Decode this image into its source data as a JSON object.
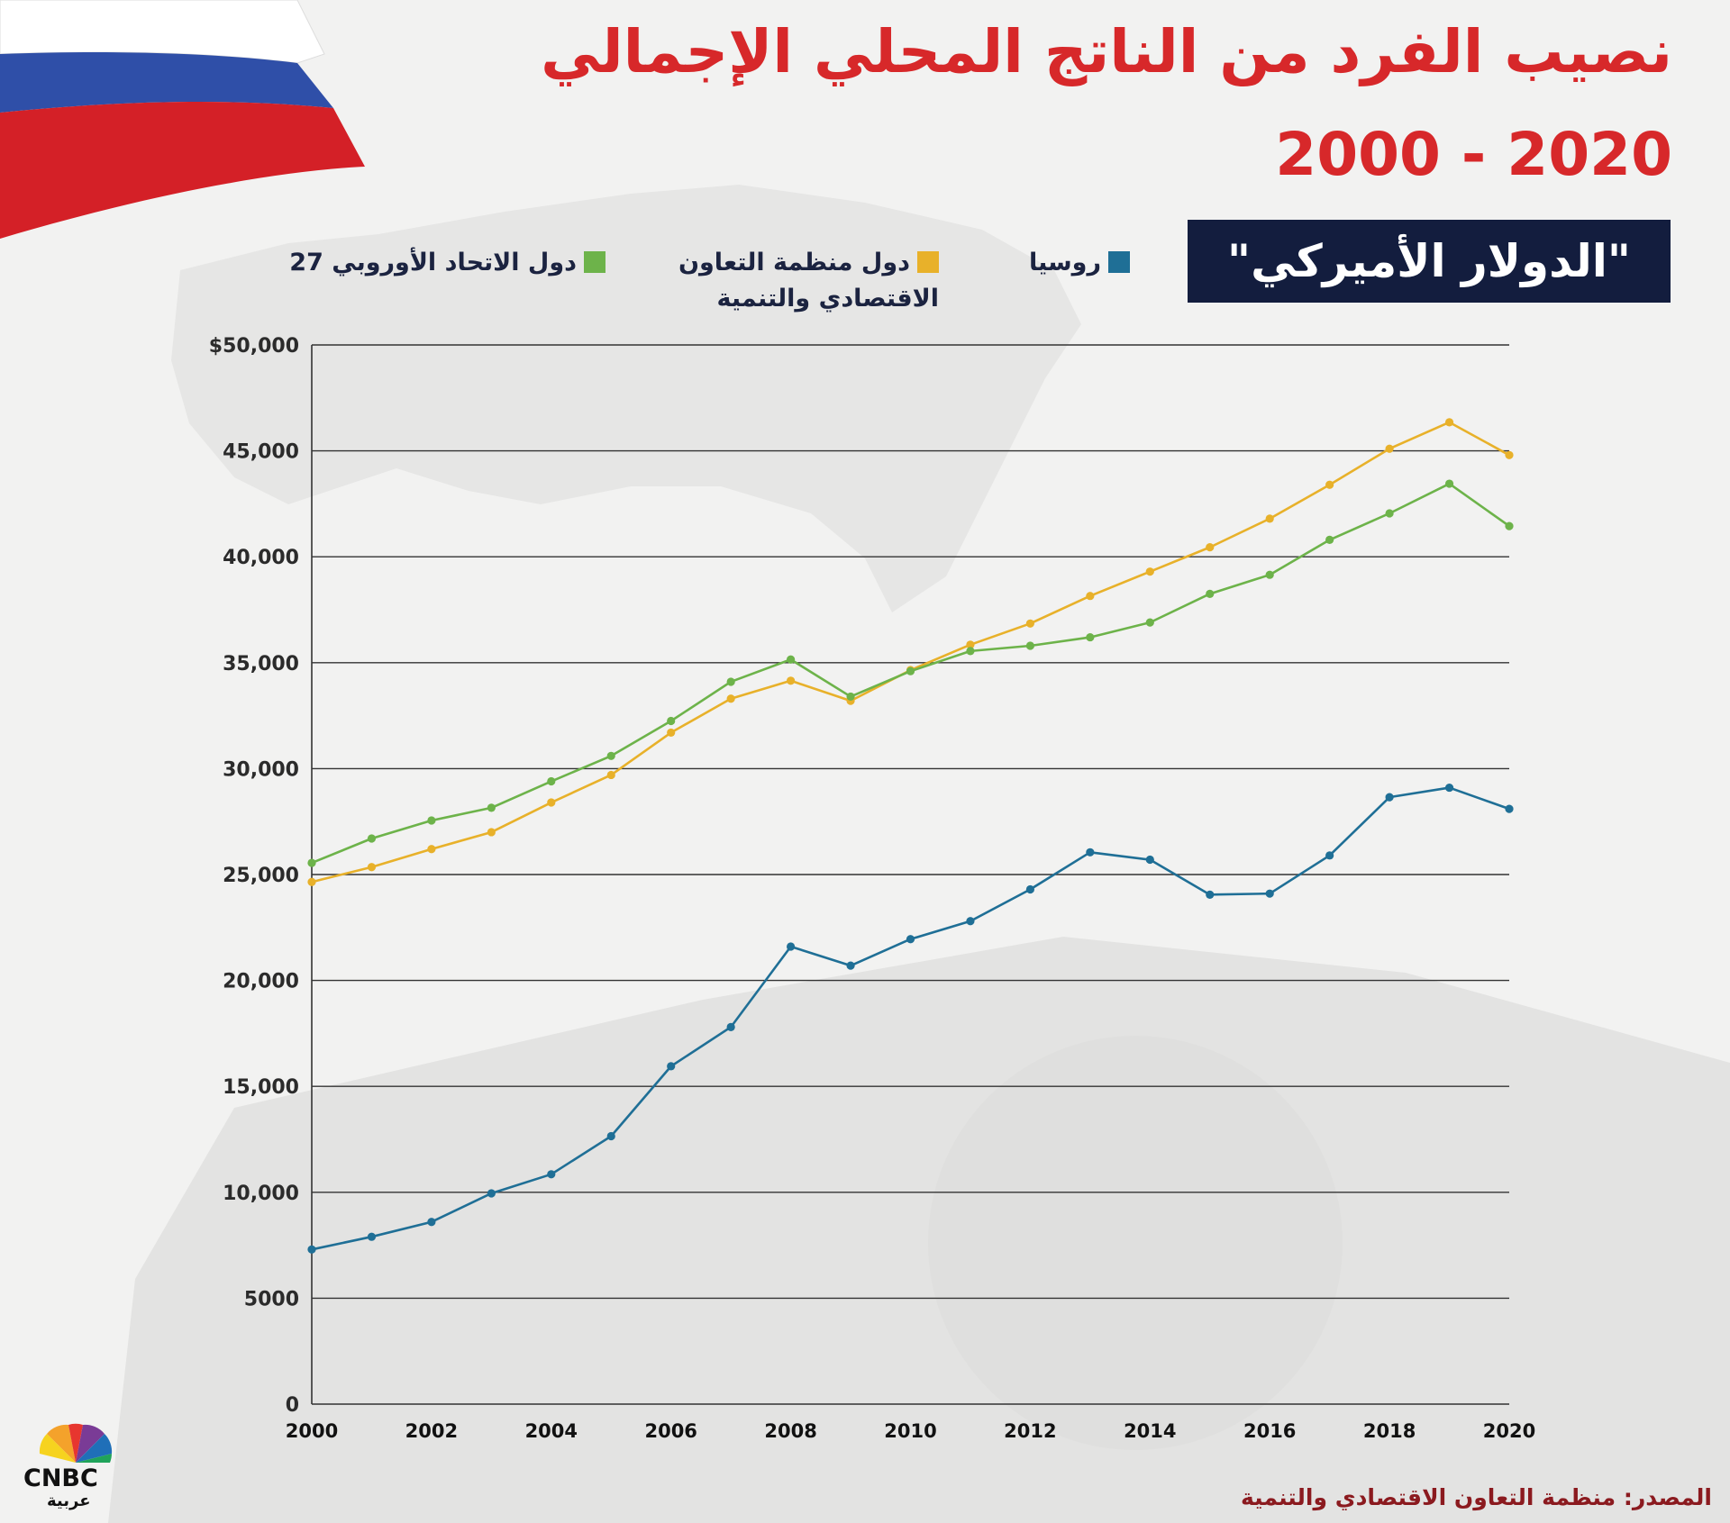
{
  "title": {
    "line1": "نصيب الفرد من الناتج المحلي الإجمالي",
    "line2": "2000 - 2020"
  },
  "unit_label": "\"الدولار الأميركي\"",
  "legend": {
    "russia": {
      "label": "روسيا",
      "color": "#1f6f96"
    },
    "oecd": {
      "label": "دول منظمة التعاون الاقتصادي والتنمية",
      "color": "#e8b12a"
    },
    "eu": {
      "label": "دول الاتحاد الأوروبي 27",
      "color": "#6db34a"
    }
  },
  "source": "المصدر: منظمة التعاون الاقتصادي والتنمية",
  "logo": {
    "word": "CNBC",
    "arabic": "عربية"
  },
  "chart_data": {
    "type": "line",
    "x": [
      2000,
      2001,
      2002,
      2003,
      2004,
      2005,
      2006,
      2007,
      2008,
      2009,
      2010,
      2011,
      2012,
      2013,
      2014,
      2015,
      2016,
      2017,
      2018,
      2019,
      2020
    ],
    "xticks": [
      "2000",
      "2002",
      "2004",
      "2006",
      "2008",
      "2010",
      "2012",
      "2014",
      "2016",
      "2018",
      "2020"
    ],
    "yticks": [
      "0",
      "5000",
      "10,000",
      "15,000",
      "20,000",
      "25,000",
      "30,000",
      "35,000",
      "40,000",
      "45,000",
      "$50,000"
    ],
    "ylim": [
      0,
      50000
    ],
    "grid": true,
    "legend_position": "top",
    "series": [
      {
        "key": "russia",
        "name": "روسيا",
        "color": "#1f6f96",
        "values": [
          7300,
          7900,
          8600,
          9950,
          10850,
          12650,
          15950,
          17800,
          21600,
          20700,
          21950,
          22800,
          24300,
          26050,
          25700,
          24050,
          24100,
          25900,
          28650,
          29100,
          28100
        ]
      },
      {
        "key": "oecd",
        "name": "دول منظمة التعاون الاقتصادي والتنمية",
        "color": "#e8b12a",
        "values": [
          24650,
          25350,
          26200,
          27000,
          28400,
          29700,
          31700,
          33300,
          34150,
          33200,
          34650,
          35850,
          36850,
          38150,
          39300,
          40450,
          41800,
          43400,
          45100,
          46350,
          44800
        ]
      },
      {
        "key": "eu",
        "name": "دول الاتحاد الأوروبي 27",
        "color": "#6db34a",
        "values": [
          25550,
          26700,
          27550,
          28150,
          29400,
          30600,
          32250,
          34100,
          35150,
          33400,
          34600,
          35550,
          35800,
          36200,
          36900,
          38250,
          39150,
          40800,
          42050,
          43450,
          41450
        ]
      }
    ]
  }
}
